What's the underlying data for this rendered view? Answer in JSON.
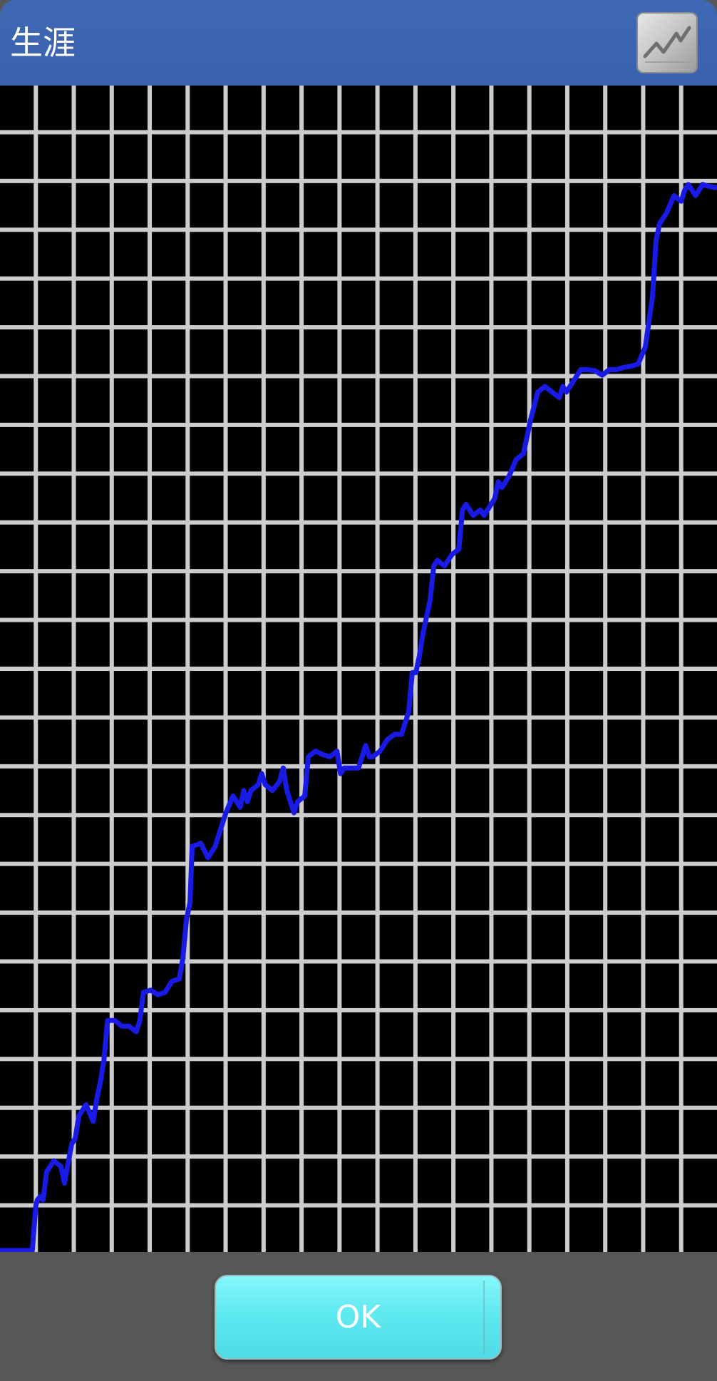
{
  "header": {
    "title": "生涯",
    "chart_button_icon": "line-chart-icon"
  },
  "footer": {
    "ok_label": "OK"
  },
  "colors": {
    "header": "#3c64b0",
    "grid": "#cccccc",
    "cell": "#000000",
    "line": "#1a1ae6",
    "button": "#6ef0f5",
    "footer": "#575757"
  },
  "chart_data": {
    "type": "line",
    "title": "",
    "xlabel": "",
    "ylabel": "",
    "grid": true,
    "xlim": [
      0,
      100
    ],
    "ylim": [
      0,
      100
    ],
    "series": [
      {
        "values": [
          [
            0,
            0
          ],
          [
            4.5,
            0
          ],
          [
            5,
            4
          ],
          [
            5.2,
            4.5
          ],
          [
            5.6,
            4.8
          ],
          [
            6,
            4.5
          ],
          [
            6.5,
            7
          ],
          [
            7.5,
            8
          ],
          [
            8.5,
            7.5
          ],
          [
            9,
            6
          ],
          [
            9.5,
            7.8
          ],
          [
            10,
            9.5
          ],
          [
            10.5,
            10
          ],
          [
            11,
            12
          ],
          [
            12,
            13
          ],
          [
            13,
            11.5
          ],
          [
            13.5,
            13.5
          ],
          [
            14,
            15
          ],
          [
            14.5,
            17
          ],
          [
            15,
            20.5
          ],
          [
            16,
            20.5
          ],
          [
            17,
            20
          ],
          [
            18,
            20
          ],
          [
            19,
            19.5
          ],
          [
            19.5,
            20.5
          ],
          [
            20,
            23
          ],
          [
            21,
            23.2
          ],
          [
            22,
            22.8
          ],
          [
            23,
            23
          ],
          [
            24,
            24
          ],
          [
            25,
            24.2
          ],
          [
            25.5,
            26
          ],
          [
            26,
            29.5
          ],
          [
            26.5,
            31
          ],
          [
            26.8,
            36
          ],
          [
            28,
            36.3
          ],
          [
            29,
            35
          ],
          [
            30,
            36
          ],
          [
            30.5,
            37
          ],
          [
            31.5,
            39
          ],
          [
            32.5,
            40.5
          ],
          [
            33,
            40
          ],
          [
            33.5,
            39.5
          ],
          [
            34,
            41
          ],
          [
            34.5,
            40
          ],
          [
            35,
            41
          ],
          [
            36,
            41.5
          ],
          [
            36.5,
            42.5
          ],
          [
            37,
            41.5
          ],
          [
            38,
            41
          ],
          [
            39,
            41.8
          ],
          [
            39.5,
            43
          ],
          [
            40,
            41
          ],
          [
            41,
            39
          ],
          [
            41.5,
            40
          ],
          [
            42.5,
            40.5
          ],
          [
            43,
            44
          ],
          [
            44,
            44.5
          ],
          [
            45,
            44.2
          ],
          [
            46,
            44
          ],
          [
            47,
            44.5
          ],
          [
            47.5,
            42.5
          ],
          [
            48,
            43
          ],
          [
            49,
            43
          ],
          [
            50,
            43
          ],
          [
            51,
            45
          ],
          [
            51.5,
            44
          ],
          [
            52,
            44
          ],
          [
            53,
            44.5
          ],
          [
            54,
            45.5
          ],
          [
            55,
            46
          ],
          [
            56,
            46
          ],
          [
            57,
            48
          ],
          [
            57.5,
            51.5
          ],
          [
            58,
            51.5
          ],
          [
            58.5,
            53
          ],
          [
            59,
            55
          ],
          [
            60,
            58
          ],
          [
            60.5,
            61
          ],
          [
            61,
            61.5
          ],
          [
            62,
            61
          ],
          [
            63,
            62
          ],
          [
            64,
            62.5
          ],
          [
            64.5,
            66
          ],
          [
            65,
            66.5
          ],
          [
            66,
            65.5
          ],
          [
            67,
            66
          ],
          [
            67.5,
            65.5
          ],
          [
            68,
            66
          ],
          [
            69,
            67
          ],
          [
            69.5,
            68.5
          ],
          [
            70,
            68
          ],
          [
            71,
            69
          ],
          [
            72,
            70.5
          ],
          [
            73,
            71
          ],
          [
            74,
            74
          ],
          [
            75,
            76.5
          ],
          [
            76,
            77
          ],
          [
            77,
            76.5
          ],
          [
            78,
            76
          ],
          [
            78.5,
            77
          ],
          [
            79,
            76.5
          ],
          [
            80,
            77.5
          ],
          [
            81,
            78.5
          ],
          [
            82,
            78.5
          ],
          [
            83,
            78.4
          ],
          [
            84,
            78
          ],
          [
            85,
            78.5
          ],
          [
            86,
            78.5
          ],
          [
            87,
            78.7
          ],
          [
            88,
            78.8
          ],
          [
            89,
            79
          ],
          [
            90,
            80.5
          ],
          [
            91,
            85
          ],
          [
            91.5,
            90
          ],
          [
            92,
            91.5
          ],
          [
            93,
            92.5
          ],
          [
            94,
            94
          ],
          [
            95,
            93.5
          ],
          [
            95.5,
            94.5
          ],
          [
            96,
            95
          ],
          [
            97,
            94
          ],
          [
            98,
            95
          ],
          [
            99,
            94.8
          ],
          [
            100,
            94.7
          ]
        ]
      }
    ]
  }
}
